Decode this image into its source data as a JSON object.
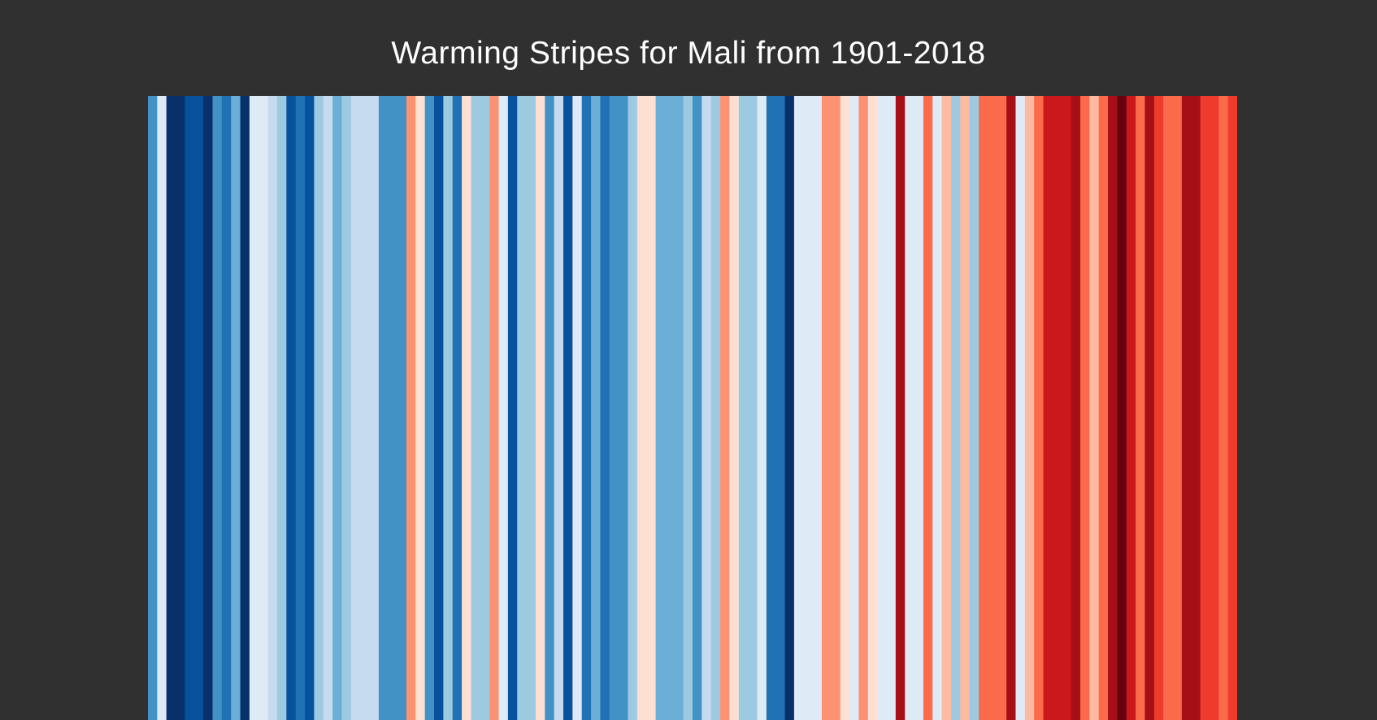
{
  "chart_data": {
    "type": "heatmap",
    "title": "Warming Stripes for Mali from 1901-2018",
    "x_start": 1901,
    "x_end": 2018,
    "colors": [
      "#4292c6",
      "#deebf7",
      "#08306b",
      "#08306b",
      "#08519c",
      "#08519c",
      "#08306b",
      "#4292c6",
      "#2171b5",
      "#6baed6",
      "#08306b",
      "#deebf7",
      "#deebf7",
      "#c6dbef",
      "#9ecae1",
      "#08519c",
      "#2171b5",
      "#08519c",
      "#9ecae1",
      "#c6dbef",
      "#6baed6",
      "#9ecae1",
      "#c6dbef",
      "#c6dbef",
      "#c6dbef",
      "#4292c6",
      "#4292c6",
      "#4292c6",
      "#fc9272",
      "#fee0d2",
      "#4292c6",
      "#08519c",
      "#9ecae1",
      "#2171b5",
      "#fee0d2",
      "#9ecae1",
      "#9ecae1",
      "#fc9272",
      "#deebf7",
      "#08519c",
      "#9ecae1",
      "#9ecae1",
      "#fee0d2",
      "#4292c6",
      "#c6dbef",
      "#08519c",
      "#deebf7",
      "#2171b5",
      "#6baed6",
      "#2171b5",
      "#4292c6",
      "#4292c6",
      "#9ecae1",
      "#fee0d2",
      "#fee0d2",
      "#6baed6",
      "#6baed6",
      "#6baed6",
      "#9ecae1",
      "#4292c6",
      "#c6dbef",
      "#9ecae1",
      "#fc9272",
      "#fee0d2",
      "#9ecae1",
      "#9ecae1",
      "#deebf7",
      "#2171b5",
      "#2171b5",
      "#08306b",
      "#deebf7",
      "#deebf7",
      "#deebf7",
      "#fc9272",
      "#fc9272",
      "#fee0d2",
      "#deebf7",
      "#fc9272",
      "#fee0d2",
      "#deebf7",
      "#deebf7",
      "#a50f15",
      "#deebf7",
      "#deebf7",
      "#fb6a4a",
      "#deebf7",
      "#fcbba1",
      "#9ecae1",
      "#fcbba1",
      "#9ecae1",
      "#fb6a4a",
      "#fb6a4a",
      "#fb6a4a",
      "#a50f15",
      "#deebf7",
      "#fcbba1",
      "#fb6a4a",
      "#cb181d",
      "#cb181d",
      "#cb181d",
      "#a50f15",
      "#fb6a4a",
      "#fcbba1",
      "#fb6a4a",
      "#a50f15",
      "#67000d",
      "#cb181d",
      "#fb6a4a",
      "#a50f15",
      "#ef3b2c",
      "#fb6a4a",
      "#fb6a4a",
      "#a50f15",
      "#a50f15",
      "#ef3b2c",
      "#ef3b2c",
      "#fb6a4a",
      "#ef3b2c"
    ]
  }
}
